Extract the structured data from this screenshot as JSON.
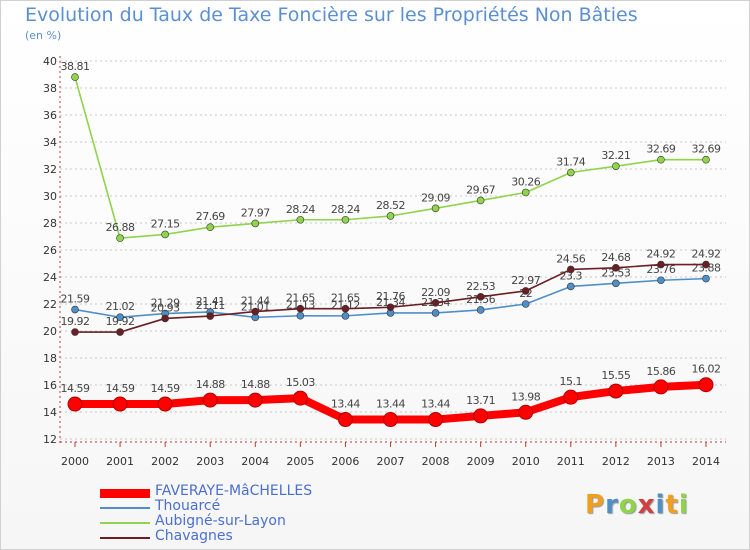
{
  "title": "Evolution du Taux de Taxe Foncière sur les Propriétés Non Bâties",
  "unit_label": "(en %)",
  "logo_text": "Proxiti",
  "chart_data": {
    "type": "line",
    "title": "Evolution du Taux de Taxe Foncière sur les Propriétés Non Bâties",
    "ylabel": "(en %)",
    "ylim": [
      12,
      40
    ],
    "yticks": [
      12,
      14,
      16,
      18,
      20,
      22,
      24,
      26,
      28,
      30,
      32,
      34,
      36,
      38,
      40
    ],
    "x": [
      "2000",
      "2001",
      "2002",
      "2003",
      "2004",
      "2005",
      "2006",
      "2007",
      "2008",
      "2009",
      "2010",
      "2011",
      "2012",
      "2013",
      "2014"
    ],
    "grid": "horizontal dashed",
    "legend_position": "bottom-left",
    "series": [
      {
        "name": "FAVERAYE-MâCHELLES",
        "color": "#ff0000",
        "values": [
          14.59,
          14.59,
          14.59,
          14.88,
          14.88,
          15.03,
          13.44,
          13.44,
          13.44,
          13.71,
          13.98,
          15.1,
          15.55,
          15.86,
          16.02
        ],
        "labels": [
          "14.59",
          "14.59",
          "14.59",
          "14.88",
          "14.88",
          "15.03",
          "13.44",
          "13.44",
          "13.44",
          "13.71",
          "13.98",
          "15.1",
          "15.55",
          "15.86",
          "16.02"
        ]
      },
      {
        "name": "Thouarcé",
        "color": "#4f8fc8",
        "values": [
          21.59,
          21.02,
          21.29,
          21.41,
          21.01,
          21.13,
          21.12,
          21.34,
          21.34,
          21.56,
          22.0,
          23.3,
          23.53,
          23.76,
          23.88
        ],
        "labels": [
          "21.59",
          "21.02",
          "21.29",
          "21.41",
          "21.01",
          "21.13",
          "21.12",
          "21.34",
          "21.34",
          "21.56",
          "22",
          "23.3",
          "23.53",
          "23.76",
          "23.88"
        ]
      },
      {
        "name": "Aubigné-sur-Layon",
        "color": "#8fd44a",
        "values": [
          38.81,
          26.88,
          27.15,
          27.69,
          27.97,
          28.24,
          28.24,
          28.52,
          29.09,
          29.67,
          30.26,
          31.74,
          32.21,
          32.69,
          32.69
        ],
        "labels": [
          "38.81",
          "26.88",
          "27.15",
          "27.69",
          "27.97",
          "28.24",
          "28.24",
          "28.52",
          "29.09",
          "29.67",
          "30.26",
          "31.74",
          "32.21",
          "32.69",
          "32.69"
        ]
      },
      {
        "name": "Chavagnes",
        "color": "#6b1e24",
        "values": [
          19.92,
          19.92,
          20.93,
          21.11,
          21.44,
          21.65,
          21.65,
          21.76,
          22.09,
          22.53,
          22.97,
          24.56,
          24.68,
          24.92,
          24.92
        ],
        "labels": [
          "19.92",
          "19.92",
          "20.93",
          "21.11",
          "21.44",
          "21.65",
          "21.65",
          "21.76",
          "22.09",
          "22.53",
          "22.97",
          "24.56",
          "24.68",
          "24.92",
          "24.92"
        ]
      }
    ]
  }
}
